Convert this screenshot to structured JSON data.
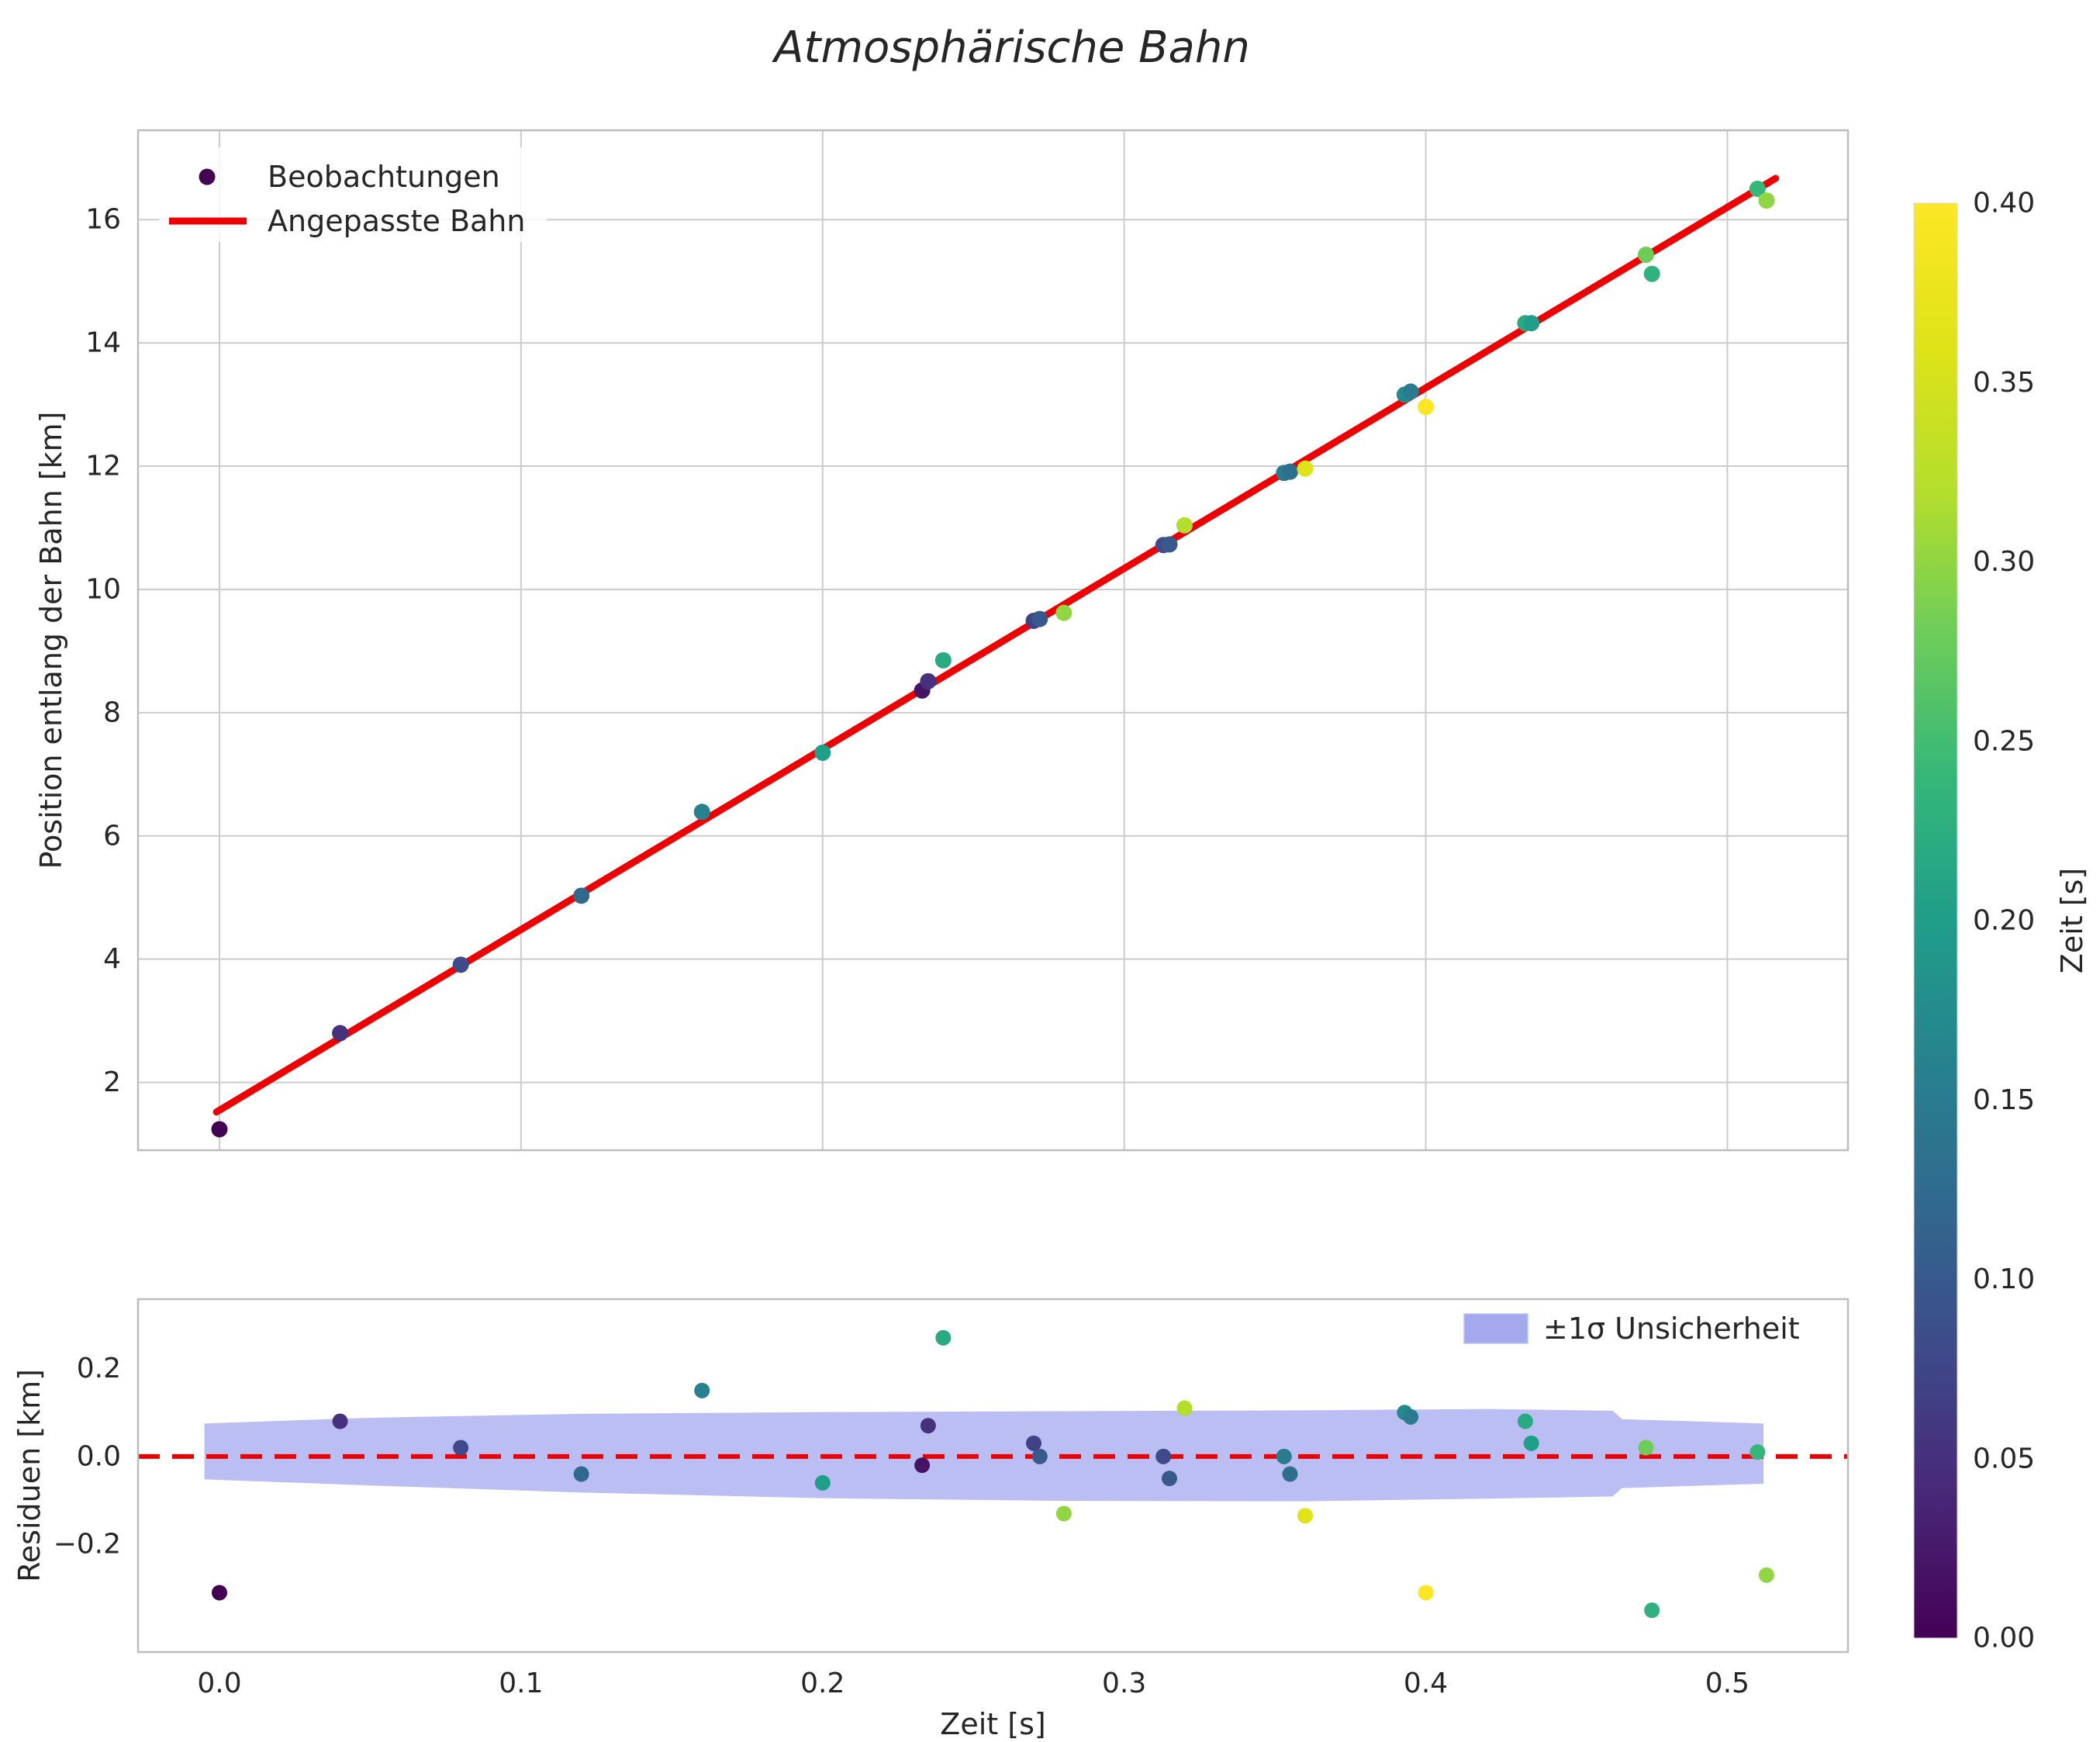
{
  "title": "Atmosphärische Bahn",
  "style": {
    "text_color": "#262626",
    "grid_color": "#cccccc",
    "spine_color": "#bdbdbd",
    "fit_color": "#ed0000",
    "band_color": "#5a64e0",
    "band_opacity": 0.42,
    "background": "#ffffff"
  },
  "chart_data": [
    {
      "id": "trajectory",
      "type": "scatter",
      "title": "Atmosphärische Bahn",
      "xlabel": "",
      "ylabel": "Position entlang der Bahn [km]",
      "xlim": [
        -0.027,
        0.54
      ],
      "ylim": [
        0.9,
        17.45
      ],
      "grid": true,
      "legend_position": "upper left",
      "xticks": {
        "values": [
          0.0,
          0.1,
          0.2,
          0.3,
          0.4,
          0.5
        ],
        "labels": [
          "0.0",
          "0.1",
          "0.2",
          "0.3",
          "0.4",
          "0.5"
        ],
        "labels_visible": false
      },
      "yticks": {
        "values": [
          2,
          4,
          6,
          8,
          10,
          12,
          14,
          16
        ],
        "labels": [
          "2",
          "4",
          "6",
          "8",
          "10",
          "12",
          "14",
          "16"
        ]
      },
      "series": [
        {
          "name": "Beobachtungen",
          "type": "scatter",
          "colormap": "viridis",
          "color_by": "Zeit [s]",
          "x": [
            0.0,
            0.04,
            0.08,
            0.12,
            0.16,
            0.2,
            0.233,
            0.235,
            0.24,
            0.27,
            0.272,
            0.28,
            0.313,
            0.315,
            0.32,
            0.353,
            0.355,
            0.36,
            0.393,
            0.395,
            0.4,
            0.433,
            0.435,
            0.473,
            0.475,
            0.51,
            0.513
          ],
          "y": [
            1.24,
            2.8,
            3.91,
            5.03,
            6.39,
            7.35,
            8.36,
            8.51,
            8.85,
            9.49,
            9.52,
            9.62,
            10.72,
            10.73,
            11.04,
            11.89,
            11.91,
            11.96,
            13.16,
            13.21,
            12.96,
            14.32,
            14.32,
            15.43,
            15.12,
            16.5,
            16.31
          ],
          "c": [
            0.0,
            0.05,
            0.08,
            0.12,
            0.16,
            0.2,
            0.02,
            0.05,
            0.22,
            0.07,
            0.1,
            0.3,
            0.08,
            0.1,
            0.32,
            0.15,
            0.13,
            0.36,
            0.17,
            0.15,
            0.4,
            0.22,
            0.2,
            0.28,
            0.23,
            0.24,
            0.3
          ]
        },
        {
          "name": "Angepasste Bahn",
          "type": "line",
          "color": "#ed0000",
          "x": [
            -0.001,
            0.516
          ],
          "y": [
            1.52,
            16.67
          ]
        }
      ]
    },
    {
      "id": "residuals",
      "type": "scatter",
      "title": "",
      "xlabel": "Zeit [s]",
      "ylabel": "Residuen [km]",
      "xlim": [
        -0.027,
        0.54
      ],
      "ylim": [
        -0.445,
        0.358
      ],
      "grid": false,
      "xticks": {
        "values": [
          0.0,
          0.1,
          0.2,
          0.3,
          0.4,
          0.5
        ],
        "labels": [
          "0.0",
          "0.1",
          "0.2",
          "0.3",
          "0.4",
          "0.5"
        ],
        "labels_visible": true
      },
      "yticks": {
        "values": [
          -0.2,
          0.0,
          0.2
        ],
        "labels": [
          "−0.2",
          "0.0",
          "0.2"
        ]
      },
      "zero_line": {
        "y": 0.0,
        "style": "dashed",
        "color": "#ed0000"
      },
      "band": {
        "label": "±1σ Unsicherheit",
        "x": [
          -0.005,
          0.05,
          0.12,
          0.2,
          0.28,
          0.36,
          0.42,
          0.462,
          0.465,
          0.512
        ],
        "upper": [
          0.075,
          0.088,
          0.097,
          0.101,
          0.103,
          0.105,
          0.108,
          0.104,
          0.085,
          0.075
        ],
        "lower": [
          -0.052,
          -0.066,
          -0.082,
          -0.095,
          -0.101,
          -0.102,
          -0.096,
          -0.091,
          -0.072,
          -0.062
        ]
      },
      "series": [
        {
          "name": "Residuen",
          "type": "scatter",
          "colormap": "viridis",
          "color_by": "Zeit [s]",
          "x": [
            0.0,
            0.04,
            0.08,
            0.12,
            0.16,
            0.2,
            0.233,
            0.235,
            0.24,
            0.27,
            0.272,
            0.28,
            0.313,
            0.315,
            0.32,
            0.353,
            0.355,
            0.36,
            0.393,
            0.395,
            0.4,
            0.433,
            0.435,
            0.473,
            0.475,
            0.51,
            0.513
          ],
          "y": [
            -0.31,
            0.08,
            0.02,
            -0.04,
            0.15,
            -0.06,
            -0.02,
            0.07,
            0.27,
            0.03,
            0.0,
            -0.13,
            0.0,
            -0.05,
            0.11,
            0.0,
            -0.04,
            -0.135,
            0.1,
            0.09,
            -0.31,
            0.08,
            0.03,
            0.02,
            -0.35,
            0.01,
            -0.27
          ],
          "c": [
            0.0,
            0.05,
            0.08,
            0.12,
            0.16,
            0.2,
            0.02,
            0.05,
            0.22,
            0.07,
            0.1,
            0.3,
            0.08,
            0.1,
            0.32,
            0.15,
            0.13,
            0.36,
            0.17,
            0.15,
            0.4,
            0.22,
            0.2,
            0.28,
            0.23,
            0.24,
            0.3
          ]
        }
      ]
    }
  ],
  "colorbar": {
    "label": "Zeit [s]",
    "colormap": "viridis",
    "vmin": 0.0,
    "vmax": 0.4,
    "ticks": {
      "values": [
        0.0,
        0.05,
        0.1,
        0.15,
        0.2,
        0.25,
        0.3,
        0.35,
        0.4
      ],
      "labels": [
        "0.00",
        "0.05",
        "0.10",
        "0.15",
        "0.20",
        "0.25",
        "0.30",
        "0.35",
        "0.40"
      ]
    }
  }
}
